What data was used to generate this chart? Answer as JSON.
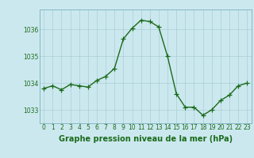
{
  "x": [
    0,
    1,
    2,
    3,
    4,
    5,
    6,
    7,
    8,
    9,
    10,
    11,
    12,
    13,
    14,
    15,
    16,
    17,
    18,
    19,
    20,
    21,
    22,
    23
  ],
  "y": [
    1033.8,
    1033.9,
    1033.75,
    1033.95,
    1033.9,
    1033.85,
    1034.1,
    1034.25,
    1034.55,
    1035.65,
    1036.05,
    1036.35,
    1036.3,
    1036.1,
    1035.0,
    1033.6,
    1033.1,
    1033.1,
    1032.8,
    1033.0,
    1033.35,
    1033.55,
    1033.9,
    1034.0
  ],
  "line_color": "#1a6b1a",
  "marker": "+",
  "markersize": 4,
  "linewidth": 1.0,
  "background_color": "#cce8ef",
  "grid_color": "#aacdd6",
  "xlabel": "Graphe pression niveau de la mer (hPa)",
  "xlabel_fontsize": 7,
  "tick_color": "#1a6b1a",
  "tick_fontsize": 5.5,
  "ylim": [
    1032.5,
    1036.75
  ],
  "yticks": [
    1033,
    1034,
    1035,
    1036
  ],
  "xlim": [
    -0.5,
    23.5
  ],
  "spine_color": "#7ab0ba"
}
